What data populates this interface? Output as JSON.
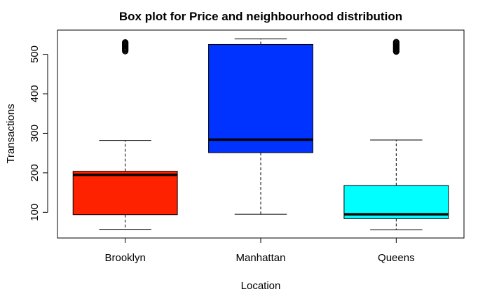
{
  "chart_data": {
    "type": "boxplot",
    "title": "Box plot for Price and neighbourhood distribution",
    "xlabel": "Location",
    "ylabel": "Transactions",
    "ylim": [
      35,
      540
    ],
    "yticks": [
      100,
      200,
      300,
      400,
      500
    ],
    "grid": false,
    "categories": [
      "Brooklyn",
      "Manhattan",
      "Queens"
    ],
    "series": [
      {
        "category": "Brooklyn",
        "color": "#ff2200",
        "whisker_low": 57,
        "q1": 94,
        "median": 195,
        "q3": 204,
        "whisker_high": 282,
        "outliers": [
          508,
          510,
          512,
          514,
          516,
          518,
          520,
          522,
          524,
          526,
          528,
          530
        ]
      },
      {
        "category": "Manhattan",
        "color": "#0033ff",
        "whisker_low": 95,
        "q1": 251,
        "median": 284,
        "q3": 525,
        "whisker_high": 539,
        "outliers": []
      },
      {
        "category": "Queens",
        "color": "#00ffff",
        "whisker_low": 56,
        "q1": 84,
        "median": 95,
        "q3": 168,
        "whisker_high": 283,
        "outliers": [
          507,
          509,
          511,
          513,
          515,
          517,
          519,
          521,
          523,
          525,
          527,
          529,
          531
        ]
      }
    ]
  }
}
